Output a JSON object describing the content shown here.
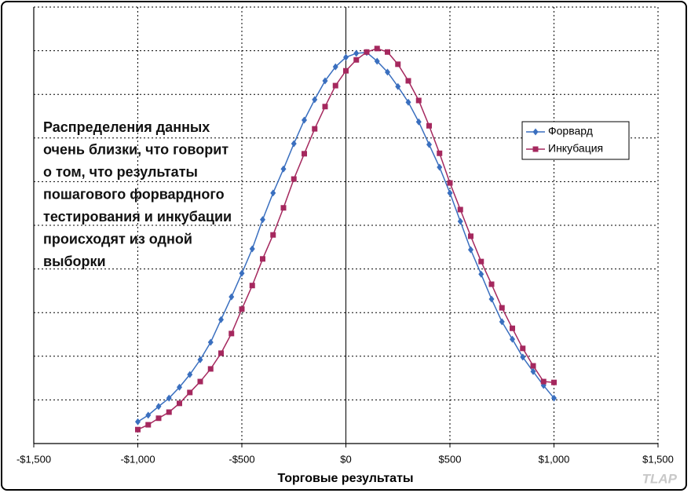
{
  "chart_data": {
    "type": "line",
    "x_label": "Торговые результаты",
    "annotation": [
      "Распределения данных",
      "очень близки, что говорит",
      "о том, что результаты",
      "пошагового форвардного",
      "тестирования и инкубации",
      "происходят из одной",
      "выборки"
    ],
    "watermark": "TLAP",
    "x": [
      -1000,
      -950,
      -900,
      -850,
      -800,
      -750,
      -700,
      -650,
      -600,
      -550,
      -500,
      -450,
      -400,
      -350,
      -300,
      -250,
      -200,
      -150,
      -100,
      -50,
      0,
      50,
      100,
      150,
      200,
      250,
      300,
      350,
      400,
      450,
      500,
      550,
      600,
      650,
      700,
      750,
      800,
      850,
      900,
      950,
      1000
    ],
    "series": [
      {
        "name": "Форвард",
        "color": "#3a6fbf",
        "marker": "diamond",
        "values": [
          0.5,
          0.65,
          0.85,
          1.04,
          1.29,
          1.58,
          1.92,
          2.32,
          2.84,
          3.36,
          3.9,
          4.46,
          5.13,
          5.74,
          6.29,
          6.87,
          7.41,
          7.88,
          8.31,
          8.63,
          8.85,
          8.94,
          8.96,
          8.76,
          8.51,
          8.18,
          7.82,
          7.37,
          6.85,
          6.33,
          5.74,
          5.09,
          4.44,
          3.88,
          3.31,
          2.79,
          2.39,
          1.98,
          1.65,
          1.33,
          1.04
        ]
      },
      {
        "name": "Инкубация",
        "color": "#a5285e",
        "marker": "square",
        "values": [
          0.32,
          0.43,
          0.58,
          0.72,
          0.92,
          1.17,
          1.42,
          1.71,
          2.07,
          2.52,
          3.08,
          3.62,
          4.23,
          4.78,
          5.4,
          6.06,
          6.64,
          7.21,
          7.72,
          8.2,
          8.54,
          8.79,
          8.97,
          9.05,
          8.97,
          8.69,
          8.31,
          7.86,
          7.28,
          6.65,
          5.97,
          5.36,
          4.75,
          4.17,
          3.65,
          3.11,
          2.64,
          2.18,
          1.78,
          1.42,
          1.4
        ]
      }
    ],
    "xlim": [
      -1500,
      1500
    ],
    "xticks": [
      {
        "value": -1500,
        "label": "-$1,500"
      },
      {
        "value": -1000,
        "label": "-$1,000"
      },
      {
        "value": -500,
        "label": "-$500"
      },
      {
        "value": 0,
        "label": "$0"
      },
      {
        "value": 500,
        "label": "$500"
      },
      {
        "value": 1000,
        "label": "$1,000"
      },
      {
        "value": 1500,
        "label": "$1,500"
      }
    ],
    "ylim": [
      0,
      10
    ],
    "yticks": [
      0,
      1,
      2,
      3,
      4,
      5,
      6,
      7,
      8,
      9,
      10
    ],
    "grid": true,
    "legend": "right"
  }
}
